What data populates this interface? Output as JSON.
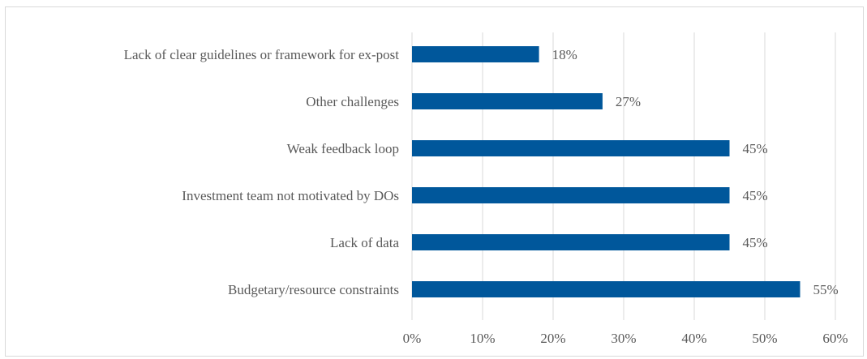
{
  "chart_data": {
    "type": "bar",
    "orientation": "horizontal",
    "title": "",
    "xlabel": "",
    "ylabel": "",
    "categories": [
      "Lack of clear guidelines or framework for ex-post",
      "Other challenges",
      "Weak feedback loop",
      "Investment team not motivated by DOs",
      "Lack of data",
      "Budgetary/resource constraints"
    ],
    "values": [
      18,
      27,
      45,
      45,
      45,
      55
    ],
    "data_labels": [
      "18%",
      "27%",
      "45%",
      "45%",
      "45%",
      "55%"
    ],
    "xlim": [
      0,
      60
    ],
    "ticks": [
      0,
      10,
      20,
      30,
      40,
      50,
      60
    ],
    "tick_labels": [
      "0%",
      "10%",
      "20%",
      "30%",
      "40%",
      "50%",
      "60%"
    ],
    "grid": "vertical",
    "legend": "none",
    "bar_color": "#00579b"
  }
}
